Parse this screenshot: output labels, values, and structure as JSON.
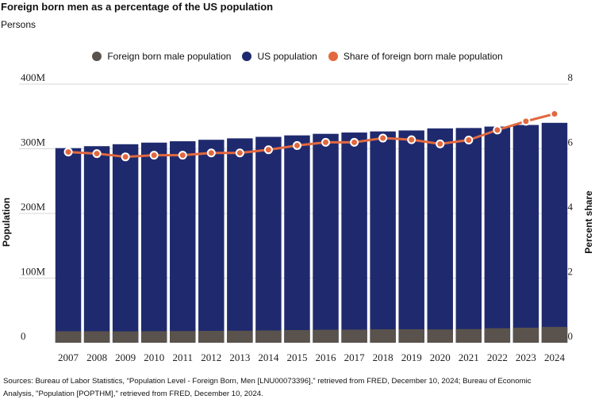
{
  "header": {
    "title": "Foreign born men as a percentage of the US population",
    "subtitle": "Persons"
  },
  "legend": {
    "items": [
      {
        "label": "Foreign born male population",
        "color": "#5a524c"
      },
      {
        "label": "US population",
        "color": "#1f2a6e"
      },
      {
        "label": "Share of foreign born male population",
        "color": "#e2683f"
      }
    ]
  },
  "footer": {
    "source_line1": "Sources: Bureau of Labor Statistics, “Population Level - Foreign Born, Men [LNU00073396],” retrieved from FRED, December 10, 2024; Bureau of Economic",
    "source_line2": "Analysis, \"Population [POPTHM],\" retrieved from FRED, December 10, 2024."
  },
  "chart_data": {
    "type": "bar",
    "categories": [
      "2007",
      "2008",
      "2009",
      "2010",
      "2011",
      "2012",
      "2013",
      "2014",
      "2015",
      "2016",
      "2017",
      "2018",
      "2019",
      "2020",
      "2021",
      "2022",
      "2023",
      "2024"
    ],
    "series": [
      {
        "name": "US population",
        "axis": "left",
        "mark": "bar",
        "values": [
          301,
          304,
          307,
          309.5,
          311.6,
          313.9,
          316.1,
          318.4,
          320.7,
          323.1,
          325.1,
          326.8,
          328.3,
          331.5,
          332.1,
          334.3,
          336.8,
          340.1
        ]
      },
      {
        "name": "Foreign born male population",
        "axis": "left",
        "mark": "bar",
        "values": [
          17.8,
          17.8,
          17.6,
          17.9,
          18.1,
          18.4,
          18.6,
          19.0,
          19.6,
          20.1,
          20.3,
          20.8,
          20.9,
          20.6,
          21.1,
          22.4,
          23.3,
          24.5
        ]
      },
      {
        "name": "Share of foreign born male population",
        "axis": "right",
        "mark": "line",
        "values": [
          5.9,
          5.85,
          5.75,
          5.8,
          5.8,
          5.87,
          5.87,
          5.97,
          6.1,
          6.2,
          6.2,
          6.33,
          6.28,
          6.15,
          6.27,
          6.58,
          6.85,
          7.08
        ]
      }
    ],
    "ylabel": "Population",
    "y2label": "Percent share",
    "ylim": [
      0,
      400
    ],
    "y2lim": [
      0,
      8
    ],
    "yticks": [
      "0",
      "100M",
      "200M",
      "300M",
      "400M"
    ],
    "y2ticks": [
      "0",
      "2",
      "4",
      "6",
      "8"
    ],
    "grid": true,
    "legend_position": "top"
  }
}
